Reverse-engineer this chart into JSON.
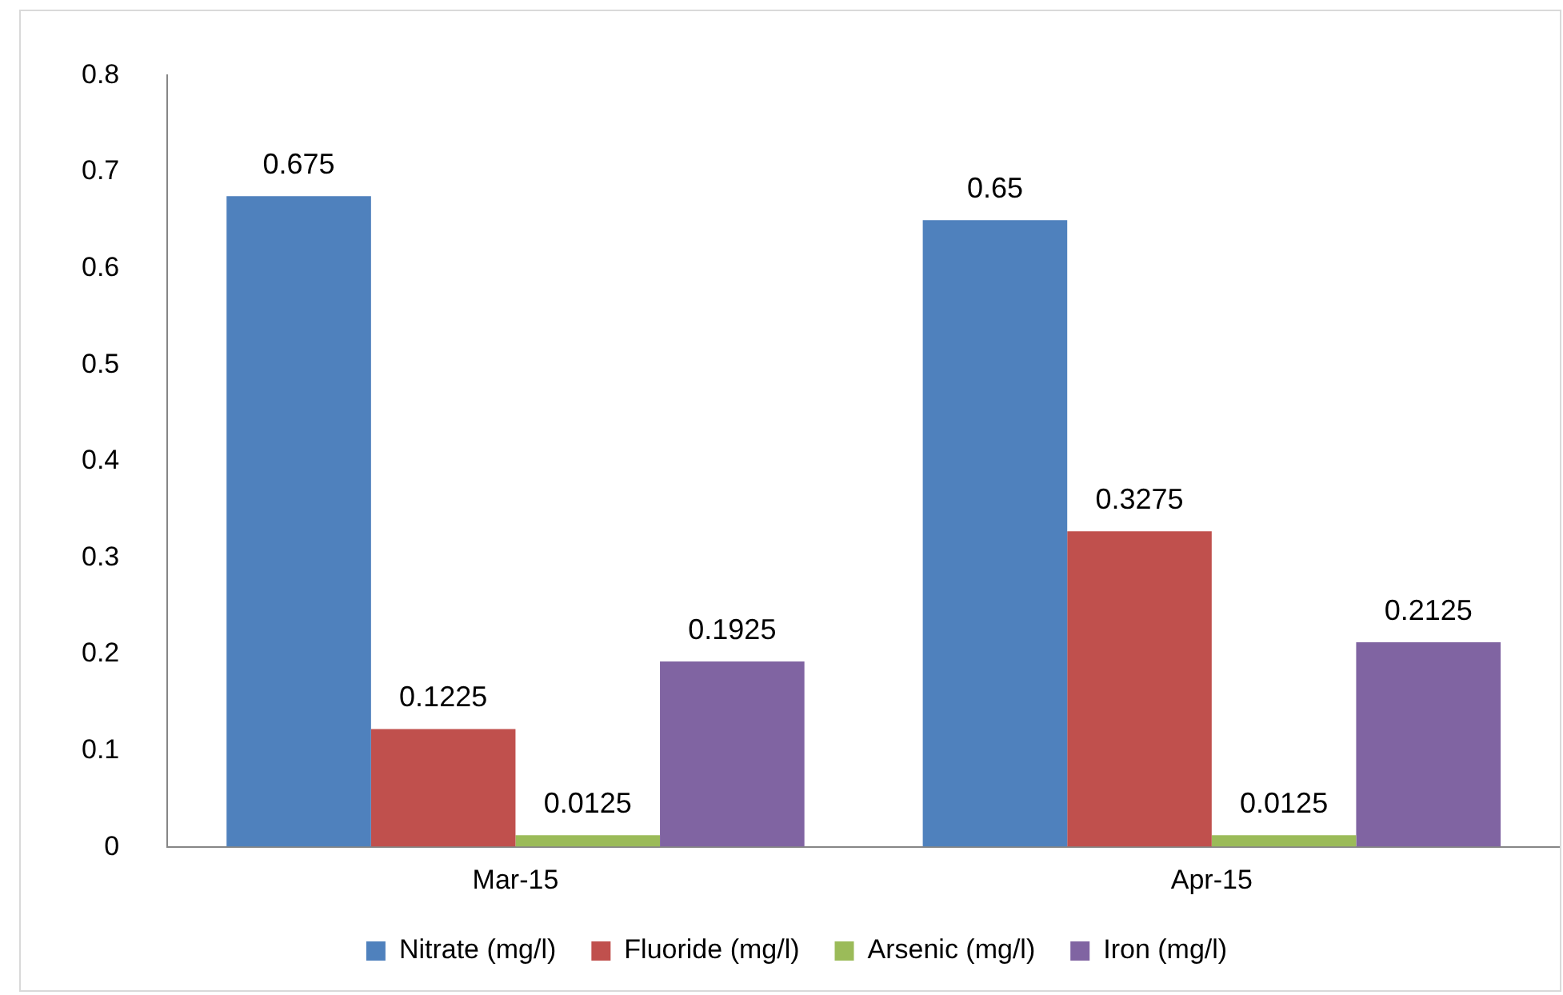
{
  "chart_data": {
    "type": "bar",
    "categories": [
      "Mar-15",
      "Apr-15"
    ],
    "series": [
      {
        "name": "Nitrate (mg/l)",
        "color": "#4f81bd",
        "values": [
          0.675,
          0.65
        ]
      },
      {
        "name": "Fluoride (mg/l)",
        "color": "#c0504d",
        "values": [
          0.1225,
          0.3275
        ]
      },
      {
        "name": "Arsenic (mg/l)",
        "color": "#9bbb59",
        "values": [
          0.0125,
          0.0125
        ]
      },
      {
        "name": "Iron (mg/l)",
        "color": "#8064a2",
        "values": [
          0.1925,
          0.2125
        ]
      }
    ],
    "ylim": [
      0,
      0.8
    ],
    "yticks": [
      0,
      0.1,
      0.2,
      0.3,
      0.4,
      0.5,
      0.6,
      0.7,
      0.8
    ],
    "data_labels": true,
    "grid": false,
    "legend": "bottom"
  }
}
